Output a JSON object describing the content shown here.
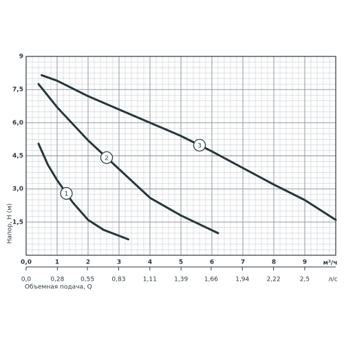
{
  "chart_data": {
    "type": "line",
    "y_label": "Напор, H (м)",
    "x_label": "Объемная подача, Q",
    "x_unit": "м³/ч",
    "x2_unit": "л/с",
    "xlim": [
      0,
      10
    ],
    "ylim": [
      0,
      9
    ],
    "xticks": [
      {
        "value": 0,
        "label": "0,0"
      },
      1,
      2,
      3,
      4,
      5,
      6,
      7,
      8,
      9
    ],
    "yticks": [
      {
        "value": 1.5,
        "label": "1,5"
      },
      {
        "value": 3,
        "label": "3,0"
      },
      {
        "value": 4.5,
        "label": "4,5"
      },
      {
        "value": 6,
        "label": "6,0"
      },
      {
        "value": 7.5,
        "label": "7,5"
      },
      9
    ],
    "x2lim": [
      0,
      2.778
    ],
    "x2ticks": [
      {
        "value": 0,
        "label": "0,0"
      },
      {
        "value": 0.28,
        "label": "0,28"
      },
      {
        "value": 0.55,
        "label": "0,55"
      },
      {
        "value": 0.83,
        "label": "0,83"
      },
      {
        "value": 1.11,
        "label": "1,11"
      },
      {
        "value": 1.39,
        "label": "1,39"
      },
      {
        "value": 1.66,
        "label": "1,66"
      },
      {
        "value": 1.94,
        "label": "1,94"
      },
      {
        "value": 2.22,
        "label": "2,22"
      },
      {
        "value": 2.5,
        "label": "2,5"
      }
    ],
    "minor_grid": {
      "x": 0.2,
      "y": 0.25
    },
    "series": [
      {
        "name": "1",
        "color": "#26363c",
        "x": [
          0.4,
          0.7,
          1,
          1.5,
          2,
          2.5,
          3.3
        ],
        "values": [
          5.05,
          4.1,
          3.4,
          2.4,
          1.6,
          1.15,
          0.72
        ]
      },
      {
        "name": "2",
        "color": "#26363c",
        "x": [
          0.4,
          1,
          2,
          3,
          4,
          5,
          6.2
        ],
        "values": [
          7.75,
          6.7,
          5.2,
          3.9,
          2.6,
          1.8,
          1.0
        ]
      },
      {
        "name": "3",
        "color": "#26363c",
        "x": [
          0.5,
          1,
          2,
          3,
          4,
          5,
          6,
          7,
          8,
          9,
          10
        ],
        "values": [
          8.15,
          7.9,
          7.2,
          6.6,
          6.0,
          5.4,
          4.7,
          3.95,
          3.2,
          2.5,
          1.6
        ]
      }
    ]
  }
}
